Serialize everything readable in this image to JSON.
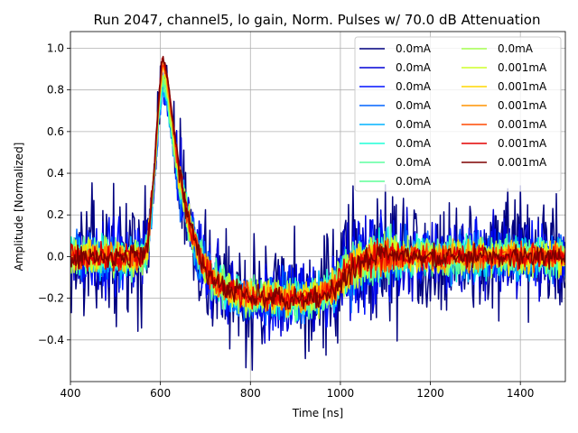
{
  "chart_data": {
    "type": "line",
    "title": "Run 2047, channel5, lo gain, Norm. Pulses w/ 70.0 dB Attenuation",
    "xlabel": "Time [ns]",
    "ylabel": "Amplitude [Normalized]",
    "xlim": [
      400,
      1500
    ],
    "ylim": [
      -0.6,
      1.08
    ],
    "grid": true,
    "legend_position": "top-right",
    "x_ticks": [
      400,
      600,
      800,
      1000,
      1200,
      1400
    ],
    "x_tick_labels": [
      "400",
      "600",
      "800",
      "1000",
      "1200",
      "1400"
    ],
    "y_ticks": [
      -0.4,
      -0.2,
      0.0,
      0.2,
      0.4,
      0.6,
      0.8,
      1.0
    ],
    "y_tick_labels": [
      "−0.4",
      "−0.2",
      "0.0",
      "0.2",
      "0.4",
      "0.6",
      "0.8",
      "1.0"
    ],
    "pulse_shape": {
      "x": [
        400,
        560,
        572,
        585,
        597,
        605,
        614,
        625,
        640,
        660,
        690,
        720,
        760,
        800,
        850,
        900,
        950,
        980,
        1000,
        1020,
        1040,
        1060,
        1080,
        1100,
        1200,
        1300,
        1400,
        1500
      ],
      "y": [
        0.0,
        0.0,
        0.06,
        0.4,
        0.8,
        0.98,
        0.9,
        0.7,
        0.45,
        0.2,
        -0.02,
        -0.12,
        -0.17,
        -0.19,
        -0.2,
        -0.2,
        -0.19,
        -0.16,
        -0.12,
        -0.07,
        -0.03,
        -0.01,
        0.0,
        0.0,
        0.0,
        0.0,
        0.0,
        0.0
      ]
    },
    "series": [
      {
        "name": "0.0mA",
        "color": "#00007f",
        "noise": 0.14,
        "peak": 0.92
      },
      {
        "name": "0.0mA",
        "color": "#0000d5",
        "noise": 0.09,
        "peak": 0.86
      },
      {
        "name": "0.0mA",
        "color": "#0010ff",
        "noise": 0.075,
        "peak": 0.84
      },
      {
        "name": "0.0mA",
        "color": "#0064ff",
        "noise": 0.06,
        "peak": 0.83
      },
      {
        "name": "0.0mA",
        "color": "#00b4ff",
        "noise": 0.05,
        "peak": 0.85
      },
      {
        "name": "0.0mA",
        "color": "#1fffd7",
        "noise": 0.045,
        "peak": 0.86
      },
      {
        "name": "0.0mA",
        "color": "#5effa0",
        "noise": 0.045,
        "peak": 0.87
      },
      {
        "name": "0.0mA",
        "color": "#5fff97",
        "noise": 0.042,
        "peak": 0.88
      },
      {
        "name": "0.0mA",
        "color": "#a6ff51",
        "noise": 0.04,
        "peak": 0.9
      },
      {
        "name": "0.001mA",
        "color": "#cdff29",
        "noise": 0.038,
        "peak": 0.92
      },
      {
        "name": "0.001mA",
        "color": "#ffd700",
        "noise": 0.035,
        "peak": 0.94
      },
      {
        "name": "0.001mA",
        "color": "#ff9400",
        "noise": 0.032,
        "peak": 0.95
      },
      {
        "name": "0.001mA",
        "color": "#ff4800",
        "noise": 0.03,
        "peak": 0.96
      },
      {
        "name": "0.001mA",
        "color": "#e30000",
        "noise": 0.028,
        "peak": 0.98
      },
      {
        "name": "0.001mA",
        "color": "#7f0000",
        "noise": 0.026,
        "peak": 0.99
      }
    ]
  }
}
